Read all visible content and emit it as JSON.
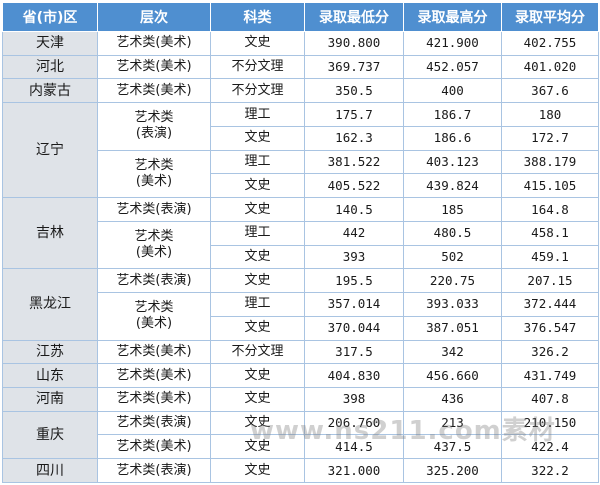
{
  "headers": [
    "省(市)区",
    "层次",
    "科类",
    "录取最低分",
    "录取最高分",
    "录取平均分"
  ],
  "cells": {
    "tianjin": {
      "prov": "天津",
      "level": "艺术类(美术)",
      "subj": "文史",
      "min": "390.800",
      "max": "421.900",
      "avg": "402.755"
    },
    "hebei": {
      "prov": "河北",
      "level": "艺术类(美术)",
      "subj": "不分文理",
      "min": "369.737",
      "max": "452.057",
      "avg": "401.020"
    },
    "neimenggu": {
      "prov": "内蒙古",
      "level": "艺术类(美术)",
      "subj": "不分文理",
      "min": "350.5",
      "max": "400",
      "avg": "367.6"
    },
    "liaoning": {
      "prov": "辽宁",
      "g1": {
        "l1": "艺术类",
        "l2": "(表演)"
      },
      "g2": {
        "l1": "艺术类",
        "l2": "(美术)"
      },
      "r1": {
        "subj": "理工",
        "min": "175.7",
        "max": "186.7",
        "avg": "180"
      },
      "r2": {
        "subj": "文史",
        "min": "162.3",
        "max": "186.6",
        "avg": "172.7"
      },
      "r3": {
        "subj": "理工",
        "min": "381.522",
        "max": "403.123",
        "avg": "388.179"
      },
      "r4": {
        "subj": "文史",
        "min": "405.522",
        "max": "439.824",
        "avg": "415.105"
      }
    },
    "jilin": {
      "prov": "吉林",
      "r1": {
        "level": "艺术类(表演)",
        "subj": "文史",
        "min": "140.5",
        "max": "185",
        "avg": "164.8"
      },
      "g2": {
        "l1": "艺术类",
        "l2": "(美术)"
      },
      "r2": {
        "subj": "理工",
        "min": "442",
        "max": "480.5",
        "avg": "458.1"
      },
      "r3": {
        "subj": "文史",
        "min": "393",
        "max": "502",
        "avg": "459.1"
      }
    },
    "heilongjiang": {
      "prov": "黑龙江",
      "r1": {
        "level": "艺术类(表演)",
        "subj": "文史",
        "min": "195.5",
        "max": "220.75",
        "avg": "207.15"
      },
      "g2": {
        "l1": "艺术类",
        "l2": "(美术)"
      },
      "r2": {
        "subj": "理工",
        "min": "357.014",
        "max": "393.033",
        "avg": "372.444"
      },
      "r3": {
        "subj": "文史",
        "min": "370.044",
        "max": "387.051",
        "avg": "376.547"
      }
    },
    "jiangsu": {
      "prov": "江苏",
      "level": "艺术类(美术)",
      "subj": "不分文理",
      "min": "317.5",
      "max": "342",
      "avg": "326.2"
    },
    "shandong": {
      "prov": "山东",
      "level": "艺术类(美术)",
      "subj": "文史",
      "min": "404.830",
      "max": "456.660",
      "avg": "431.749"
    },
    "henan": {
      "prov": "河南",
      "level": "艺术类(美术)",
      "subj": "文史",
      "min": "398",
      "max": "436",
      "avg": "407.8"
    },
    "chongqing": {
      "prov": "重庆",
      "r1": {
        "level": "艺术类(表演)",
        "subj": "文史",
        "min": "206.760",
        "max": "213",
        "avg": "210.150"
      },
      "r2": {
        "level": "艺术类(美术)",
        "subj": "文史",
        "min": "414.5",
        "max": "437.5",
        "avg": "422.4"
      }
    },
    "sichuan": {
      "prov": "四川",
      "level": "艺术类(表演)",
      "subj": "文史",
      "min": "321.000",
      "max": "325.200",
      "avg": "322.2"
    }
  },
  "watermark": "www.ns211.com素材"
}
